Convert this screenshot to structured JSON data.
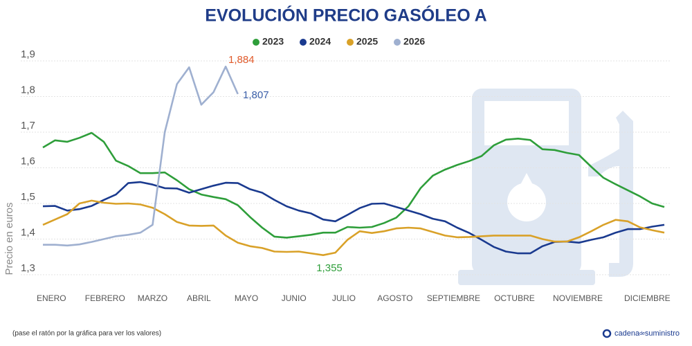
{
  "chart_data": {
    "type": "line",
    "title": "EVOLUCIÓN PRECIO GASÓLEO A",
    "y_label": "Precio en euros",
    "footnote": "(pase el ratón por la gráfica para ver los valores)",
    "brand": {
      "prefix": "cadena",
      "mid": "de",
      "suffix": "suministro"
    },
    "x": [
      1,
      2,
      3,
      4,
      5,
      6,
      7,
      8,
      9,
      10,
      11,
      12,
      13,
      14,
      15,
      16,
      17,
      18,
      19,
      20,
      21,
      22,
      23,
      24,
      25,
      26,
      27,
      28,
      29,
      30,
      31,
      32,
      33,
      34,
      35,
      36,
      37,
      38,
      39,
      40,
      41,
      42,
      43,
      44,
      45,
      46,
      47,
      48,
      49,
      50,
      51,
      52
    ],
    "xlim": [
      1,
      52
    ],
    "xticks": [
      {
        "value": 1.7,
        "label": "ENERO"
      },
      {
        "value": 6.1,
        "label": "FEBRERO"
      },
      {
        "value": 10,
        "label": "MARZO"
      },
      {
        "value": 13.8,
        "label": "ABRIL"
      },
      {
        "value": 17.7,
        "label": "MAYO"
      },
      {
        "value": 21.6,
        "label": "JUNIO"
      },
      {
        "value": 25.7,
        "label": "JULIO"
      },
      {
        "value": 29.9,
        "label": "AGOSTO"
      },
      {
        "value": 34.7,
        "label": "SEPTIEMBRE"
      },
      {
        "value": 39.7,
        "label": "OCTUBRE"
      },
      {
        "value": 44.9,
        "label": "NOVIEMBRE"
      },
      {
        "value": 50.6,
        "label": "DICIEMBRE"
      }
    ],
    "ylim": [
      1.28,
      1.92
    ],
    "yticks": [
      {
        "value": 1.3,
        "label": "1,3"
      },
      {
        "value": 1.4,
        "label": "1,4"
      },
      {
        "value": 1.5,
        "label": "1,5"
      },
      {
        "value": 1.6,
        "label": "1,6"
      },
      {
        "value": 1.7,
        "label": "1,7"
      },
      {
        "value": 1.8,
        "label": "1,8"
      },
      {
        "value": 1.9,
        "label": "1,9"
      }
    ],
    "grid": true,
    "legend": "top",
    "series": [
      {
        "name": "2023",
        "color": "#2e9e3a",
        "values": [
          1.657,
          1.677,
          1.673,
          1.684,
          1.698,
          1.673,
          1.62,
          1.605,
          1.585,
          1.585,
          1.587,
          1.565,
          1.54,
          1.525,
          1.518,
          1.512,
          1.495,
          1.462,
          1.432,
          1.407,
          1.404,
          1.408,
          1.412,
          1.418,
          1.418,
          1.434,
          1.432,
          1.434,
          1.445,
          1.46,
          1.492,
          1.543,
          1.578,
          1.595,
          1.608,
          1.619,
          1.633,
          1.663,
          1.679,
          1.682,
          1.678,
          1.652,
          1.65,
          1.642,
          1.636,
          1.603,
          1.572,
          1.554,
          1.537,
          1.52,
          1.5,
          1.49
        ]
      },
      {
        "name": "2024",
        "color": "#1a3a8f",
        "values": [
          1.492,
          1.493,
          1.48,
          1.484,
          1.493,
          1.51,
          1.525,
          1.557,
          1.56,
          1.553,
          1.543,
          1.542,
          1.53,
          1.54,
          1.55,
          1.558,
          1.557,
          1.54,
          1.53,
          1.51,
          1.492,
          1.48,
          1.472,
          1.455,
          1.45,
          1.468,
          1.487,
          1.499,
          1.5,
          1.49,
          1.48,
          1.47,
          1.457,
          1.45,
          1.432,
          1.417,
          1.398,
          1.378,
          1.365,
          1.36,
          1.36,
          1.38,
          1.392,
          1.393,
          1.39,
          1.398,
          1.405,
          1.418,
          1.428,
          1.428,
          1.435,
          1.44
        ]
      },
      {
        "name": "2025",
        "color": "#d9a128",
        "values": [
          1.44,
          1.455,
          1.47,
          1.5,
          1.508,
          1.502,
          1.499,
          1.5,
          1.497,
          1.488,
          1.47,
          1.448,
          1.438,
          1.437,
          1.438,
          1.41,
          1.39,
          1.38,
          1.375,
          1.365,
          1.364,
          1.365,
          1.36,
          1.355,
          1.362,
          1.398,
          1.422,
          1.417,
          1.422,
          1.43,
          1.432,
          1.43,
          1.42,
          1.41,
          1.405,
          1.406,
          1.408,
          1.41,
          1.41,
          1.41,
          1.41,
          1.4,
          1.393,
          1.393,
          1.405,
          1.422,
          1.44,
          1.454,
          1.45,
          1.433,
          1.425,
          1.418
        ]
      },
      {
        "name": "2026",
        "color": "#9fb0d0",
        "values": [
          1.384,
          1.384,
          1.382,
          1.385,
          1.392,
          1.4,
          1.408,
          1.412,
          1.418,
          1.44,
          1.7,
          1.835,
          1.882,
          1.777,
          1.812,
          1.884,
          1.807,
          null,
          null,
          null,
          null,
          null,
          null,
          null,
          null,
          null,
          null,
          null,
          null,
          null,
          null,
          null,
          null,
          null,
          null,
          null,
          null,
          null,
          null,
          null,
          null,
          null,
          null,
          null,
          null,
          null,
          null,
          null,
          null,
          null,
          null,
          null
        ]
      }
    ],
    "annotations": [
      {
        "text": "1,884",
        "color": "#e05a2b"
      },
      {
        "text": "1,807",
        "color": "#3a5ea8"
      },
      {
        "text": "1,355",
        "color": "#2e9e3a"
      }
    ]
  }
}
